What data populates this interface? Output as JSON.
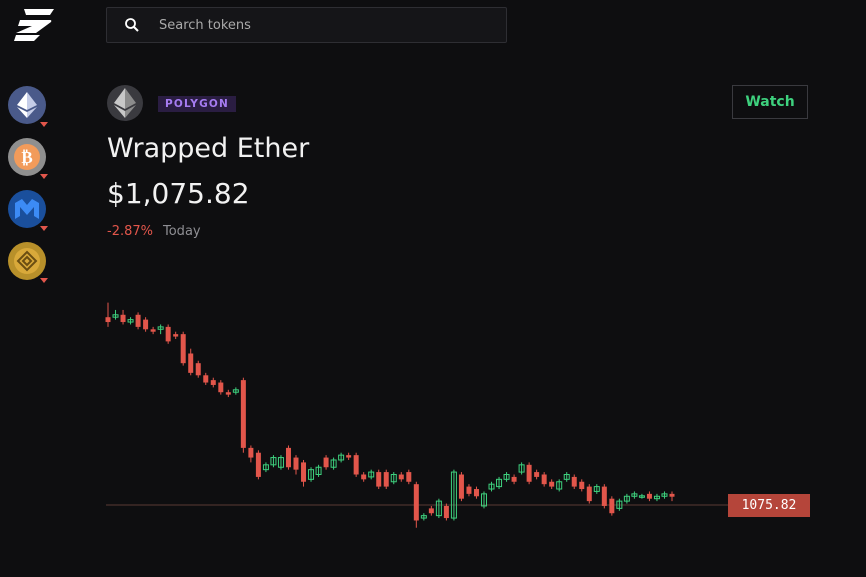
{
  "app": {
    "logo_icon": "app-logo-icon"
  },
  "sidebar": {
    "tokens": [
      {
        "name": "Ethereum",
        "icon": "ethereum-icon",
        "color": "#4a5a8a"
      },
      {
        "name": "Bitcoin",
        "icon": "bitcoin-icon",
        "color": "#8f8f8f"
      },
      {
        "name": "Polygon",
        "icon": "polygon-icon",
        "color": "#1a4f9c"
      },
      {
        "name": "BNB",
        "icon": "bnb-icon",
        "color": "#b8902a"
      }
    ]
  },
  "search": {
    "placeholder": "Search tokens",
    "value": ""
  },
  "token": {
    "chain": "POLYGON",
    "name": "Wrapped Ether",
    "price": "$1,075.82",
    "change": "-2.87%",
    "period": "Today",
    "watch_label": "Watch"
  },
  "colors": {
    "up": "#3ed17e",
    "down": "#e2564b",
    "accent": "#a67cf2"
  },
  "chart_data": {
    "type": "candlestick",
    "current_price_label": "1075.82",
    "current_price_line": true,
    "ohlc": [
      [
        1150.0,
        1148.0,
        1156.0,
        1146.0
      ],
      [
        1150.0,
        1151.0,
        1153.0,
        1149.0
      ],
      [
        1151.0,
        1148.0,
        1153.0,
        1147.0
      ],
      [
        1148.0,
        1149.0,
        1150.0,
        1147.0
      ],
      [
        1151.0,
        1146.0,
        1152.0,
        1145.0
      ],
      [
        1149.0,
        1145.0,
        1150.0,
        1144.0
      ],
      [
        1145.0,
        1144.0,
        1146.0,
        1143.0
      ],
      [
        1145.0,
        1146.0,
        1147.0,
        1143.0
      ],
      [
        1146.0,
        1140.0,
        1147.0,
        1139.0
      ],
      [
        1143.0,
        1142.0,
        1144.0,
        1141.0
      ],
      [
        1143.0,
        1131.0,
        1144.0,
        1130.0
      ],
      [
        1135.0,
        1127.0,
        1137.0,
        1126.0
      ],
      [
        1131.0,
        1126.0,
        1132.0,
        1125.0
      ],
      [
        1126.0,
        1123.0,
        1127.0,
        1122.0
      ],
      [
        1124.0,
        1122.0,
        1125.0,
        1121.0
      ],
      [
        1123.0,
        1119.0,
        1124.0,
        1118.0
      ],
      [
        1119.0,
        1118.0,
        1120.0,
        1117.0
      ],
      [
        1119.0,
        1120.0,
        1121.0,
        1118.0
      ],
      [
        1124.0,
        1096.0,
        1125.0,
        1094.0
      ],
      [
        1096.0,
        1092.0,
        1097.0,
        1090.0
      ],
      [
        1094.0,
        1084.0,
        1095.0,
        1083.0
      ],
      [
        1087.0,
        1089.0,
        1090.0,
        1086.0
      ],
      [
        1089.0,
        1092.0,
        1093.0,
        1088.0
      ],
      [
        1088.0,
        1092.0,
        1093.0,
        1087.0
      ],
      [
        1096.0,
        1088.0,
        1097.0,
        1087.0
      ],
      [
        1092.0,
        1087.0,
        1093.0,
        1085.0
      ],
      [
        1090.0,
        1082.0,
        1091.0,
        1080.0
      ],
      [
        1083.0,
        1087.0,
        1088.0,
        1082.0
      ],
      [
        1085.0,
        1088.0,
        1089.0,
        1084.0
      ],
      [
        1092.0,
        1088.0,
        1093.0,
        1087.0
      ],
      [
        1088.0,
        1091.0,
        1092.0,
        1087.0
      ],
      [
        1091.0,
        1093.0,
        1094.0,
        1090.0
      ],
      [
        1093.0,
        1092.0,
        1094.0,
        1091.0
      ],
      [
        1093.0,
        1085.0,
        1094.0,
        1084.0
      ],
      [
        1085.0,
        1083.0,
        1086.0,
        1082.0
      ],
      [
        1084.0,
        1086.0,
        1087.0,
        1083.0
      ],
      [
        1086.0,
        1080.0,
        1087.0,
        1079.0
      ],
      [
        1086.0,
        1080.0,
        1087.0,
        1079.0
      ],
      [
        1082.0,
        1085.0,
        1086.0,
        1081.0
      ],
      [
        1085.0,
        1083.0,
        1086.0,
        1082.0
      ],
      [
        1086.0,
        1082.0,
        1087.0,
        1081.0
      ],
      [
        1081.0,
        1066.0,
        1082.0,
        1063.0
      ],
      [
        1067.0,
        1068.0,
        1069.0,
        1066.0
      ],
      [
        1071.0,
        1069.0,
        1072.0,
        1068.0
      ],
      [
        1068.0,
        1074.0,
        1075.0,
        1067.0
      ],
      [
        1072.0,
        1067.0,
        1073.0,
        1066.0
      ],
      [
        1067.0,
        1086.0,
        1087.0,
        1066.0
      ],
      [
        1085.0,
        1075.0,
        1086.0,
        1074.0
      ],
      [
        1080.0,
        1077.0,
        1081.0,
        1076.0
      ],
      [
        1079.0,
        1076.0,
        1080.0,
        1075.0
      ],
      [
        1072.0,
        1077.0,
        1078.0,
        1071.0
      ],
      [
        1079.0,
        1081.0,
        1082.0,
        1078.0
      ],
      [
        1080.0,
        1083.0,
        1084.0,
        1079.0
      ],
      [
        1083.0,
        1085.0,
        1086.0,
        1082.0
      ],
      [
        1084.0,
        1082.0,
        1085.0,
        1081.0
      ],
      [
        1086.0,
        1089.0,
        1090.0,
        1085.0
      ],
      [
        1089.0,
        1082.0,
        1090.0,
        1081.0
      ],
      [
        1086.0,
        1084.0,
        1087.0,
        1083.0
      ],
      [
        1085.0,
        1081.0,
        1086.0,
        1080.0
      ],
      [
        1082.0,
        1080.0,
        1083.0,
        1079.0
      ],
      [
        1079.0,
        1082.0,
        1083.0,
        1078.0
      ],
      [
        1083.0,
        1085.0,
        1086.0,
        1082.0
      ],
      [
        1084.0,
        1080.0,
        1085.0,
        1079.0
      ],
      [
        1082.0,
        1079.0,
        1083.0,
        1078.0
      ],
      [
        1080.0,
        1074.0,
        1081.0,
        1073.0
      ],
      [
        1078.0,
        1080.0,
        1081.0,
        1077.0
      ],
      [
        1080.0,
        1072.0,
        1081.0,
        1071.0
      ],
      [
        1075.0,
        1069.0,
        1076.0,
        1068.0
      ],
      [
        1071.0,
        1074.0,
        1075.0,
        1070.0
      ],
      [
        1074.0,
        1076.0,
        1077.0,
        1073.0
      ],
      [
        1076.0,
        1077.0,
        1078.0,
        1075.0
      ],
      [
        1076.0,
        1076.2,
        1077.0,
        1075.0
      ],
      [
        1077.0,
        1075.0,
        1078.0,
        1074.0
      ],
      [
        1075.0,
        1076.0,
        1077.0,
        1074.0
      ],
      [
        1076.0,
        1077.0,
        1078.0,
        1075.0
      ],
      [
        1077.0,
        1075.82,
        1078.0,
        1074.0
      ]
    ],
    "ylim": [
      1060,
      1160
    ],
    "grid": false
  }
}
